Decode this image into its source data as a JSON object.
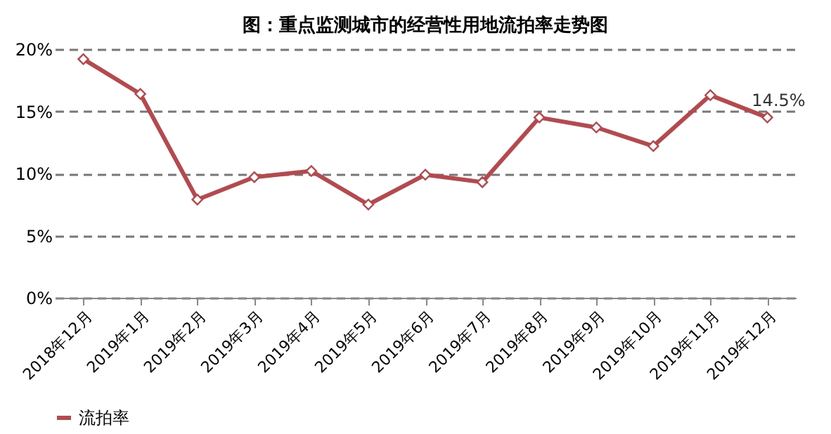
{
  "chart_data": {
    "type": "line",
    "title": "图：重点监测城市的经营性用地流拍率走势图",
    "categories": [
      "2018年12月",
      "2019年1月",
      "2019年2月",
      "2019年3月",
      "2019年4月",
      "2019年5月",
      "2019年6月",
      "2019年7月",
      "2019年8月",
      "2019年9月",
      "2019年10月",
      "2019年11月",
      "2019年12月"
    ],
    "series": [
      {
        "name": "流拍率",
        "color": "#b5494d",
        "values": [
          19.2,
          16.4,
          7.9,
          9.7,
          10.2,
          7.5,
          9.9,
          9.3,
          14.5,
          13.7,
          12.2,
          16.3,
          14.5
        ],
        "value_labels": [
          null,
          null,
          null,
          null,
          null,
          null,
          null,
          null,
          null,
          null,
          null,
          null,
          "14.5%"
        ]
      }
    ],
    "ylim": [
      0,
      20
    ],
    "yticks": [
      {
        "value": 0,
        "label": "0%"
      },
      {
        "value": 5,
        "label": "5%"
      },
      {
        "value": 10,
        "label": "10%"
      },
      {
        "value": 15,
        "label": "15%"
      },
      {
        "value": 20,
        "label": "20%"
      }
    ],
    "grid": "y",
    "legend": "bottom",
    "marker": "diamond",
    "line_style": "solid"
  }
}
